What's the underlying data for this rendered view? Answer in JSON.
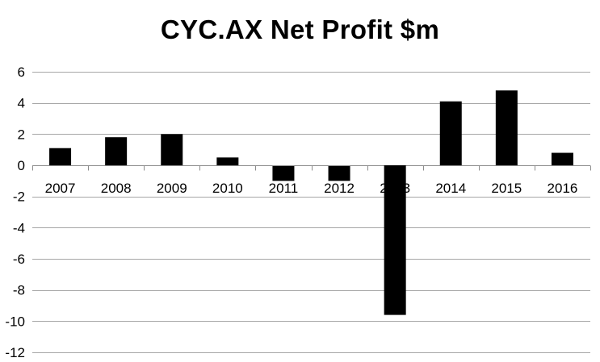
{
  "chart_data": {
    "type": "bar",
    "title": "CYC.AX Net Profit $m",
    "xlabel": "",
    "ylabel": "",
    "categories": [
      "2007",
      "2008",
      "2009",
      "2010",
      "2011",
      "2012",
      "2013",
      "2014",
      "2015",
      "2016"
    ],
    "values": [
      1.1,
      1.8,
      2.0,
      0.5,
      -1.0,
      -1.0,
      -9.6,
      4.1,
      4.8,
      0.8
    ],
    "ylim": [
      -12,
      6
    ],
    "yticks": [
      6,
      4,
      2,
      0,
      -2,
      -4,
      -6,
      -8,
      -10,
      -12
    ],
    "grid": true,
    "legend": "none",
    "colors": {
      "bar": "#000000",
      "grid": "#a6a6a6",
      "axis": "#8c8c8c"
    }
  }
}
